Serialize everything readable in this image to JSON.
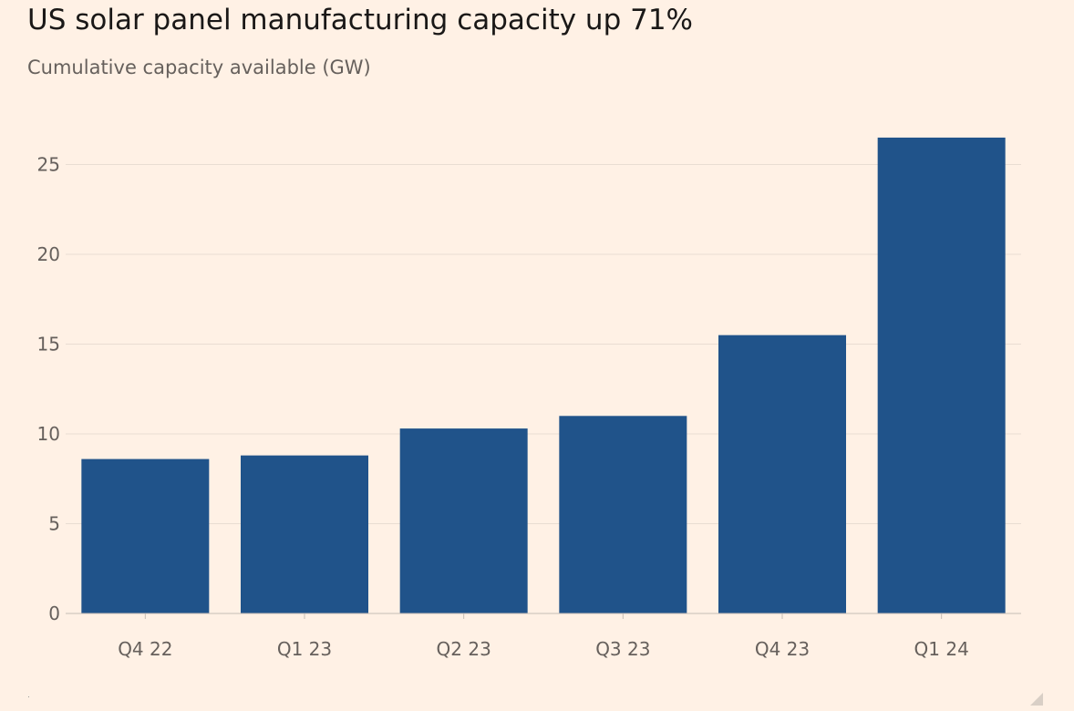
{
  "title": "US solar panel manufacturing capacity up 71%",
  "subtitle": "Cumulative capacity available (GW)",
  "colors": {
    "bar": "#20538a",
    "grid": "#e9ddd2",
    "axis": "#c6bdb5",
    "tick_text": "#66605c",
    "background": "#fff1e5"
  },
  "chart_data": {
    "type": "bar",
    "title": "US solar panel manufacturing capacity up 71%",
    "subtitle": "Cumulative capacity available (GW)",
    "xlabel": "",
    "ylabel": "",
    "categories": [
      "Q4 22",
      "Q1 23",
      "Q2 23",
      "Q3 23",
      "Q4 23",
      "Q1 24"
    ],
    "values": [
      8.6,
      8.8,
      10.3,
      11.0,
      15.5,
      26.5
    ],
    "ylim": [
      0,
      27
    ],
    "yticks": [
      0,
      5,
      10,
      15,
      20,
      25
    ],
    "grid": true,
    "legend": "none"
  }
}
